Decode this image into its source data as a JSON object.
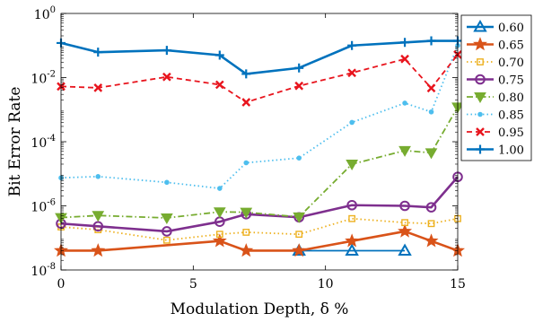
{
  "chart_data": {
    "type": "line",
    "title": "",
    "xlabel": "Modulation Depth, δ %",
    "ylabel": "Bit Error Rate",
    "xlim": [
      0,
      15
    ],
    "ylim_exponent": [
      -8,
      0
    ],
    "yscale": "log",
    "x_ticks": [
      0,
      5,
      10,
      15
    ],
    "y_ticks": [
      -8,
      -6,
      -4,
      -2,
      0
    ],
    "legend_position": "outside-right",
    "grid": false,
    "series": [
      {
        "name": "0.60",
        "color": "#0072BD",
        "dash": "solid",
        "marker": "triangle",
        "x": [
          9,
          11,
          13
        ],
        "y": [
          4e-08,
          4e-08,
          4e-08
        ]
      },
      {
        "name": "0.65",
        "color": "#D95319",
        "dash": "solid",
        "marker": "star",
        "x": [
          0,
          1.4,
          6,
          7,
          9,
          11,
          13,
          14,
          15
        ],
        "y": [
          4e-08,
          4e-08,
          8e-08,
          4e-08,
          4e-08,
          8e-08,
          1.6e-07,
          8e-08,
          4e-08
        ]
      },
      {
        "name": "0.70",
        "color": "#EDB120",
        "dash": "dotted",
        "marker": "square",
        "x": [
          0,
          1.4,
          4,
          6,
          7,
          9,
          11,
          13,
          14,
          15
        ],
        "y": [
          2.2e-07,
          1.8e-07,
          8.5e-08,
          1.3e-07,
          1.5e-07,
          1.3e-07,
          4e-07,
          3e-07,
          2.8e-07,
          4e-07
        ]
      },
      {
        "name": "0.75",
        "color": "#7E2F8E",
        "dash": "solid",
        "marker": "circle",
        "x": [
          0,
          1.4,
          4,
          6,
          7,
          9,
          11,
          13,
          14,
          15
        ],
        "y": [
          2.8e-07,
          2.3e-07,
          1.6e-07,
          3.2e-07,
          5.5e-07,
          4.4e-07,
          1.05e-06,
          1e-06,
          9e-07,
          8e-06
        ]
      },
      {
        "name": "0.80",
        "color": "#77AC30",
        "dash": "dashdot",
        "marker": "triangle-down",
        "x": [
          0,
          1.4,
          4,
          6,
          7,
          9,
          11,
          13,
          14,
          15
        ],
        "y": [
          4.3e-07,
          5e-07,
          4.2e-07,
          6.5e-07,
          6.3e-07,
          4.5e-07,
          2e-05,
          5.3e-05,
          4.5e-05,
          0.0012
        ]
      },
      {
        "name": "0.85",
        "color": "#4DBEEE",
        "dash": "dotted",
        "marker": "dot",
        "x": [
          0,
          1.4,
          4,
          6,
          7,
          9,
          11,
          13,
          14,
          15
        ],
        "y": [
          7.5e-06,
          8.2e-06,
          5.4e-06,
          3.5e-06,
          2.2e-05,
          3.1e-05,
          0.0004,
          0.0016,
          0.00085,
          0.1
        ]
      },
      {
        "name": "0.95",
        "color": "#E8141D",
        "dash": "dashed",
        "marker": "x",
        "x": [
          0,
          1.4,
          4,
          6,
          7,
          9,
          11,
          13,
          14,
          15
        ],
        "y": [
          0.0053,
          0.0048,
          0.0105,
          0.006,
          0.0017,
          0.0055,
          0.014,
          0.038,
          0.0047,
          0.052
        ]
      },
      {
        "name": "1.00",
        "color": "#0072BD",
        "dash": "solid",
        "marker": "plus",
        "x": [
          0,
          1.4,
          4,
          6,
          7,
          9,
          11,
          13,
          14,
          15
        ],
        "y": [
          0.12,
          0.062,
          0.071,
          0.05,
          0.013,
          0.02,
          0.1,
          0.125,
          0.14,
          0.14
        ]
      }
    ]
  }
}
